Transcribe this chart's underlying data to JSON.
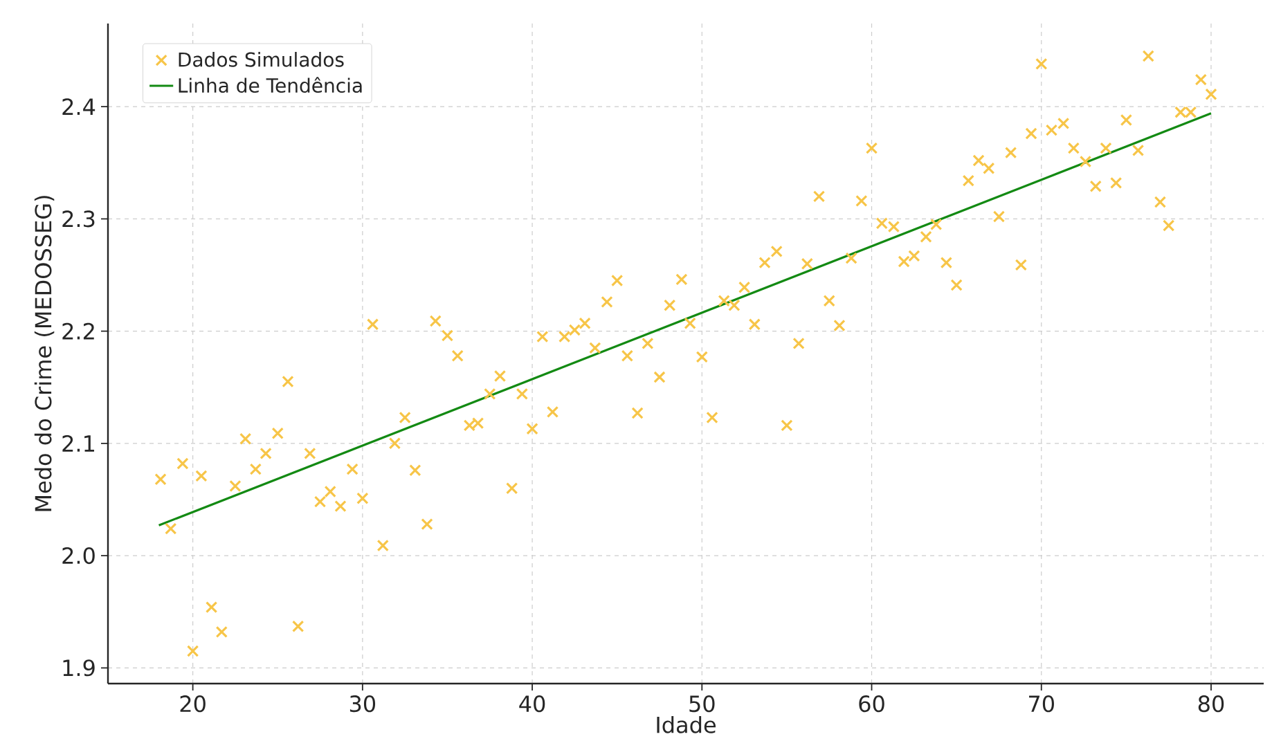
{
  "chart_data": {
    "type": "scatter",
    "xlabel": "Idade",
    "ylabel": "Medo do Crime (MEDOSSEG)",
    "xlim": [
      15,
      83.1
    ],
    "ylim": [
      1.886,
      2.474
    ],
    "xticks": [
      20,
      30,
      40,
      50,
      60,
      70,
      80
    ],
    "yticks": [
      {
        "value": 1.9,
        "label": "1.9"
      },
      {
        "value": 2.0,
        "label": "2.0"
      },
      {
        "value": 2.1,
        "label": "2.1"
      },
      {
        "value": 2.2,
        "label": "2.2"
      },
      {
        "value": 2.3,
        "label": "2.3"
      },
      {
        "value": 2.4,
        "label": "2.4"
      }
    ],
    "grid": true,
    "legend": "top left",
    "series": [
      {
        "name": "Dados Simulados",
        "marker": "cross",
        "color": "#f7c548",
        "x": [
          18.1,
          18.7,
          19.4,
          20.0,
          20.5,
          21.1,
          21.7,
          22.5,
          23.1,
          23.7,
          24.3,
          25.0,
          25.6,
          26.2,
          26.9,
          27.5,
          28.1,
          28.7,
          29.4,
          30.0,
          30.6,
          31.2,
          31.9,
          32.5,
          33.1,
          33.8,
          34.3,
          35.0,
          35.6,
          36.3,
          36.8,
          37.5,
          38.1,
          38.8,
          39.4,
          40.0,
          40.6,
          41.2,
          41.9,
          42.5,
          43.1,
          43.7,
          44.4,
          45.0,
          45.6,
          46.2,
          46.8,
          47.5,
          48.1,
          48.8,
          49.3,
          50.0,
          50.6,
          51.3,
          51.9,
          52.5,
          53.1,
          53.7,
          54.4,
          55.0,
          55.7,
          56.2,
          56.9,
          57.5,
          58.1,
          58.8,
          59.4,
          60.0,
          60.6,
          61.3,
          61.9,
          62.5,
          63.2,
          63.8,
          64.4,
          65.0,
          65.7,
          66.3,
          66.9,
          67.5,
          68.2,
          68.8,
          69.4,
          70.0,
          70.6,
          71.3,
          71.9,
          72.6,
          73.2,
          73.8,
          74.4,
          75.0,
          75.7,
          76.3,
          77.0,
          77.5,
          78.2,
          78.8,
          79.4,
          80.0
        ],
        "values": [
          2.068,
          2.024,
          2.082,
          1.915,
          2.071,
          1.954,
          1.932,
          2.062,
          2.104,
          2.077,
          2.091,
          2.109,
          2.155,
          1.937,
          2.091,
          2.048,
          2.057,
          2.044,
          2.077,
          2.051,
          2.206,
          2.009,
          2.1,
          2.123,
          2.076,
          2.028,
          2.209,
          2.196,
          2.178,
          2.116,
          2.118,
          2.144,
          2.16,
          2.06,
          2.144,
          2.113,
          2.195,
          2.128,
          2.195,
          2.201,
          2.207,
          2.185,
          2.226,
          2.245,
          2.178,
          2.127,
          2.189,
          2.159,
          2.223,
          2.246,
          2.207,
          2.177,
          2.123,
          2.227,
          2.223,
          2.239,
          2.206,
          2.261,
          2.271,
          2.116,
          2.189,
          2.26,
          2.32,
          2.227,
          2.205,
          2.265,
          2.316,
          2.363,
          2.296,
          2.293,
          2.262,
          2.267,
          2.284,
          2.295,
          2.261,
          2.241,
          2.334,
          2.352,
          2.345,
          2.302,
          2.359,
          2.259,
          2.376,
          2.438,
          2.379,
          2.385,
          2.363,
          2.351,
          2.329,
          2.363,
          2.332,
          2.388,
          2.361,
          2.445,
          2.315,
          2.294,
          2.395,
          2.395,
          2.424,
          2.411
        ]
      },
      {
        "name": "Linha de Tendência",
        "type": "line",
        "marker": "none",
        "line_style": "solid",
        "color": "#138a13",
        "x": [
          18,
          80
        ],
        "values": [
          2.027,
          2.394
        ]
      }
    ]
  }
}
